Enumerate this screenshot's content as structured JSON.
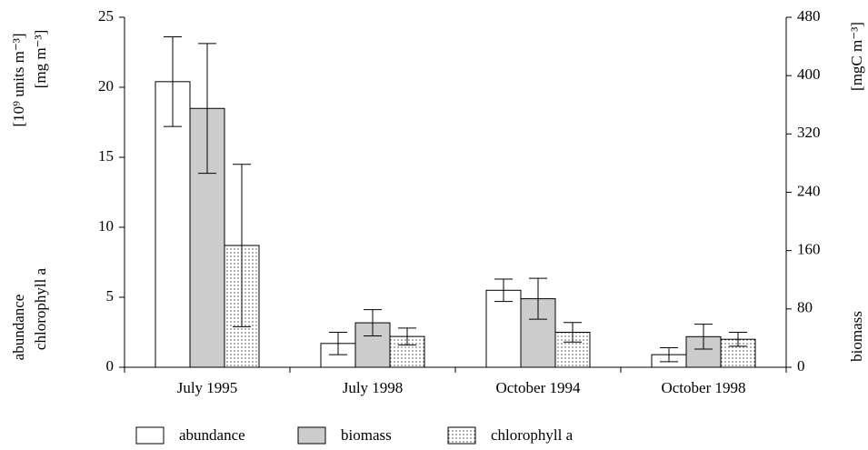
{
  "chart_data": {
    "type": "bar",
    "categories": [
      "July 1995",
      "July 1998",
      "October 1994",
      "October 1998"
    ],
    "series": [
      {
        "name": "abundance",
        "color": "#ffffff",
        "values": [
          20.4,
          1.7,
          5.5,
          0.9
        ],
        "errors": [
          3.2,
          0.8,
          0.8,
          0.5
        ]
      },
      {
        "name": "biomass",
        "color": "#cccccc",
        "axis": "y2",
        "values": [
          355,
          61,
          94,
          42
        ],
        "errors": [
          89,
          18,
          28,
          17
        ]
      },
      {
        "name": "chlorophyll a",
        "color": "dotted",
        "values": [
          8.7,
          2.2,
          2.5,
          2.0
        ],
        "errors": [
          5.8,
          0.6,
          0.7,
          0.5
        ]
      }
    ],
    "ylim": [
      0,
      25
    ],
    "yticks": [
      0,
      5,
      10,
      15,
      20,
      25
    ],
    "y2lim": [
      0,
      480
    ],
    "y2ticks": [
      0,
      80,
      160,
      240,
      320,
      400,
      480
    ],
    "y_labels": [
      "[10⁹ units m⁻³]",
      "abundance",
      "[mg  m⁻³]",
      "chlorophyll a"
    ],
    "y2_labels": [
      "[mgC  m⁻³]",
      "biomass"
    ]
  }
}
